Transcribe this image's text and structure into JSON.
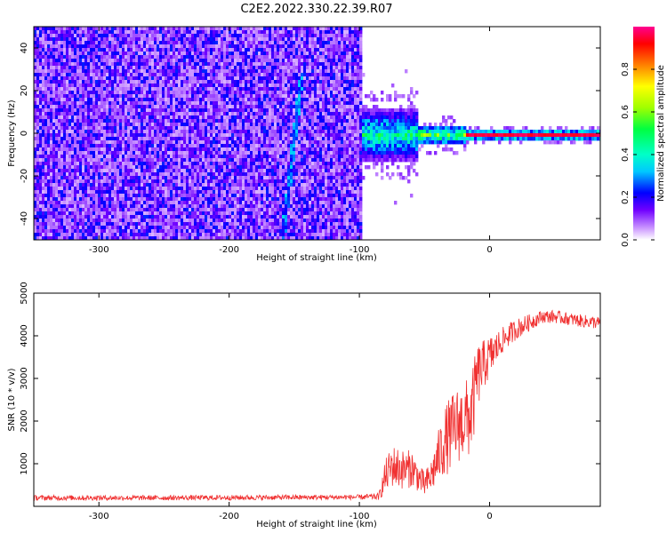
{
  "title": "C2E2.2022.330.22.39.R07",
  "colors": {
    "snr_line": "#f03030",
    "axis": "#000000",
    "background": "#ffffff"
  },
  "chart_data": [
    {
      "type": "heatmap",
      "title": "",
      "xlabel": "Height of straight line (km)",
      "ylabel": "Frequency (Hz)",
      "xlim": [
        -350,
        85
      ],
      "ylim": [
        -50,
        50
      ],
      "x_ticks": [
        -300,
        -200,
        -100,
        0
      ],
      "x_tick_labels": [
        "-300",
        "-200",
        "-100",
        "0"
      ],
      "y_ticks": [
        -40,
        -20,
        0,
        20,
        40
      ],
      "y_tick_labels": [
        "-40",
        "-20",
        "0",
        "20",
        "40"
      ],
      "grid": false,
      "regions": [
        {
          "x_range": [
            -350,
            -100
          ],
          "description_level": 0.25,
          "coverage": "full-band noise"
        },
        {
          "x_range": [
            -100,
            -55
          ],
          "center_hz": 0,
          "half_width_hz": 12,
          "peak_level": 0.5
        },
        {
          "x_range": [
            -55,
            -20
          ],
          "center_hz": 0,
          "half_width_hz": 5,
          "peak_level": 0.6
        },
        {
          "x_range": [
            -20,
            85
          ],
          "center_hz": 0,
          "half_width_hz": 2,
          "peak_level": 0.95
        }
      ],
      "streak": {
        "x_range": [
          -160,
          -145
        ],
        "y_range": [
          -50,
          30
        ]
      },
      "colorbar": {
        "label": "Normalized spectral amplitude",
        "range": [
          0,
          1
        ],
        "ticks": [
          0.0,
          0.2,
          0.4,
          0.6,
          0.8
        ],
        "tick_labels": [
          "0.0",
          "0.2",
          "0.4",
          "0.6",
          "0.8"
        ]
      }
    },
    {
      "type": "line",
      "title": "",
      "xlabel": "Height of straight line (km)",
      "ylabel": "SNR (10 * v/v)",
      "xlim": [
        -350,
        85
      ],
      "ylim": [
        0,
        5000
      ],
      "x_ticks": [
        -300,
        -200,
        -100,
        0
      ],
      "x_tick_labels": [
        "-300",
        "-200",
        "-100",
        "0"
      ],
      "y_ticks": [
        1000,
        2000,
        3000,
        4000,
        5000
      ],
      "y_tick_labels": [
        "1000",
        "2000",
        "3000",
        "4000",
        "5000"
      ],
      "grid": false,
      "series": [
        {
          "x": [
            -350,
            -300,
            -250,
            -200,
            -150,
            -100,
            -85,
            -80,
            -75,
            -70,
            -65,
            -60,
            -55,
            -50,
            -45,
            -40,
            -35,
            -30,
            -25,
            -20,
            -15,
            -12,
            -10,
            -5,
            0,
            5,
            10,
            20,
            30,
            40,
            50,
            60,
            70,
            85
          ],
          "mean": [
            200,
            200,
            200,
            205,
            210,
            215,
            230,
            700,
            950,
            900,
            850,
            900,
            700,
            500,
            700,
            1100,
            1500,
            1700,
            1900,
            2000,
            2100,
            2500,
            3000,
            3300,
            3500,
            3700,
            3900,
            4150,
            4300,
            4450,
            4450,
            4400,
            4350,
            4300
          ],
          "spread": [
            60,
            60,
            60,
            60,
            60,
            60,
            80,
            400,
            500,
            500,
            450,
            450,
            350,
            300,
            400,
            600,
            800,
            900,
            900,
            900,
            1000,
            900,
            800,
            600,
            500,
            400,
            300,
            250,
            200,
            150,
            150,
            150,
            150,
            150
          ]
        }
      ]
    }
  ]
}
